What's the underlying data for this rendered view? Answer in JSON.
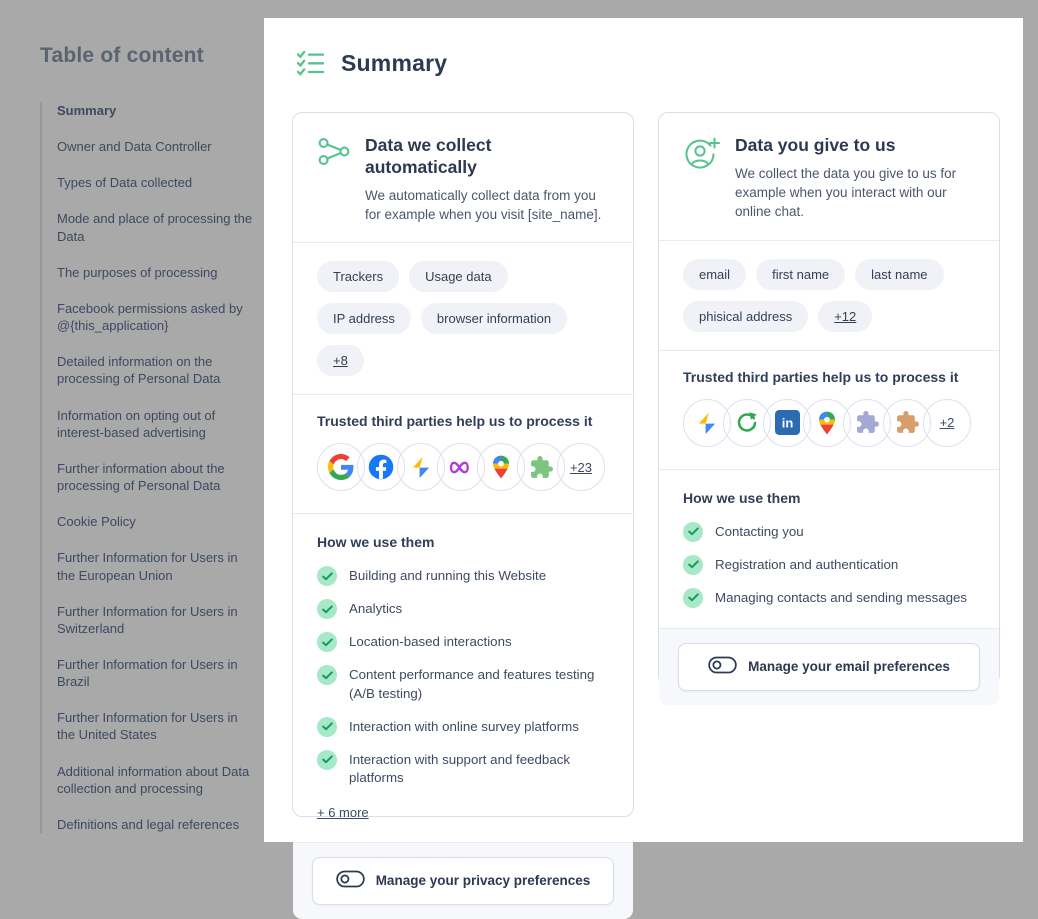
{
  "colors": {
    "accent_green": "#56C28F",
    "check_circle_bg": "#A6E8C8",
    "check_mark": "#169A5F",
    "text_navy": "#2C3950",
    "pill_bg": "#F1F2F7",
    "card_border": "#DADDEB",
    "footer_bg": "#F7F8FB",
    "page_background": "#A9A9A9"
  },
  "sidebar": {
    "title": "Table of content",
    "items": [
      {
        "label": "Summary",
        "active": true
      },
      {
        "label": "Owner and Data Controller"
      },
      {
        "label": "Types of Data collected"
      },
      {
        "label": "Mode and place of processing the Data"
      },
      {
        "label": "The purposes of processing"
      },
      {
        "label": "Facebook permissions asked by @{this_application}"
      },
      {
        "label": "Detailed information on the processing of Personal Data"
      },
      {
        "label": "Information on opting out of interest-based advertising"
      },
      {
        "label": "Further information about the processing of Personal Data"
      },
      {
        "label": "Cookie Policy"
      },
      {
        "label": "Further Information for Users in the European Union"
      },
      {
        "label": "Further Information for Users in Switzerland"
      },
      {
        "label": "Further Information for Users in Brazil"
      },
      {
        "label": "Further Information for Users in the United States"
      },
      {
        "label": "Additional information about Data collection and processing"
      },
      {
        "label": "Definitions and legal references"
      }
    ]
  },
  "main": {
    "title": "Summary",
    "title_icon": "checklist-icon",
    "cards": [
      {
        "icon": "network-nodes-icon",
        "title": "Data we collect automatically",
        "description": "We automatically collect data from you for example when you visit [site_name].",
        "tags": [
          "Trackers",
          "Usage data",
          "IP address",
          "browser information"
        ],
        "tags_more": "+8",
        "third_parties_heading": "Trusted third parties help us to process it",
        "third_parties": [
          "google-logo",
          "facebook-logo",
          "adsense-logo",
          "meta-logo",
          "google-maps-logo",
          "puzzle-piece-green-logo"
        ],
        "third_parties_more": "+23",
        "usage_heading": "How we use them",
        "usage_items": [
          "Building and running this Website",
          "Analytics",
          "Location-based interactions",
          "Content performance and features testing (A/B testing)",
          "Interaction with online survey platforms",
          "Interaction with support and feedback platforms"
        ],
        "usage_more": "+ 6 more",
        "button_label": "Manage your privacy preferences"
      },
      {
        "icon": "user-plus-icon",
        "title": "Data you give to us",
        "description": "We collect the data you give to us for example when you interact with our online chat.",
        "tags": [
          "email",
          "first name",
          "last name",
          "phisical address"
        ],
        "tags_more": "+12",
        "third_parties_heading": "Trusted third parties help us to process it",
        "third_parties": [
          "adsense-logo",
          "circular-arrow-green-logo",
          "linkedin-logo",
          "google-maps-logo",
          "puzzle-piece-purple-logo",
          "puzzle-piece-orange-logo"
        ],
        "third_parties_more": "+2",
        "usage_heading": "How we use them",
        "usage_items": [
          "Contacting you",
          "Registration and authentication",
          "Managing contacts and sending messages"
        ],
        "button_label": "Manage your email preferences"
      }
    ]
  }
}
